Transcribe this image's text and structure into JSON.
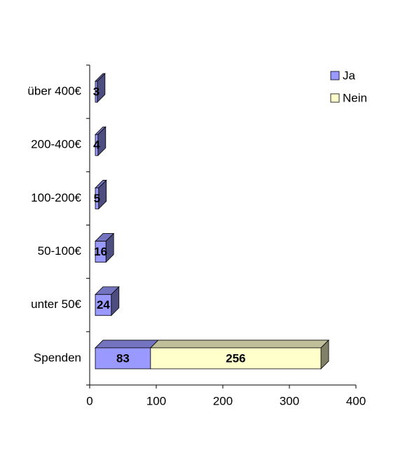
{
  "chart_data": {
    "type": "bar3d_horizontal_stacked",
    "categories": [
      "Spenden",
      "unter 50€",
      "50-100€",
      "100-200€",
      "200-400€",
      "über 400€"
    ],
    "series": [
      {
        "name": "Ja",
        "color": "#9999ff",
        "values": [
          83,
          24,
          16,
          5,
          4,
          3
        ]
      },
      {
        "name": "Nein",
        "color": "#ffffcc",
        "values": [
          256,
          null,
          null,
          null,
          null,
          null
        ]
      }
    ],
    "xlim": [
      0,
      400
    ],
    "xticks": [
      0,
      100,
      200,
      300,
      400
    ],
    "legend": "top-right"
  }
}
